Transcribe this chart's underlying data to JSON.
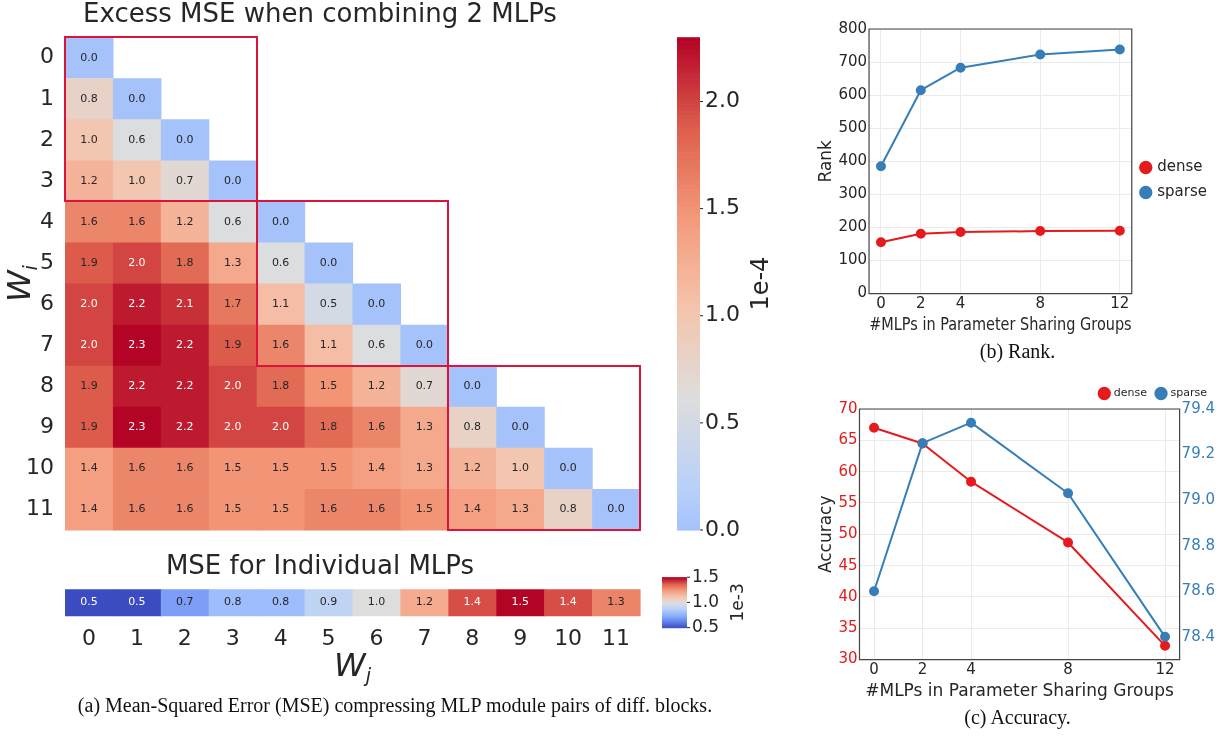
{
  "chart_data": [
    {
      "type": "heatmap",
      "title": "Excess MSE when combining 2 MLPs",
      "ylabel": "W$_{i}$",
      "clabel": "1e-4",
      "tick_labels": "y",
      "categories": [
        "0",
        "1",
        "2",
        "3",
        "4",
        "5",
        "6",
        "7",
        "8",
        "9",
        "10",
        "11"
      ],
      "y_categories": [
        "0",
        "1",
        "2",
        "3",
        "4",
        "5",
        "6",
        "7",
        "8",
        "9",
        "10",
        "11"
      ],
      "cells": [
        [
          0.0,
          null,
          null,
          null,
          null,
          null,
          null,
          null,
          null,
          null,
          null,
          null
        ],
        [
          0.8,
          0.0,
          null,
          null,
          null,
          null,
          null,
          null,
          null,
          null,
          null,
          null
        ],
        [
          1.0,
          0.6,
          0.0,
          null,
          null,
          null,
          null,
          null,
          null,
          null,
          null,
          null
        ],
        [
          1.2,
          1.0,
          0.7,
          0.0,
          null,
          null,
          null,
          null,
          null,
          null,
          null,
          null
        ],
        [
          1.6,
          1.6,
          1.2,
          0.6,
          0.0,
          null,
          null,
          null,
          null,
          null,
          null,
          null
        ],
        [
          1.9,
          2.0,
          1.8,
          1.3,
          0.6,
          0.0,
          null,
          null,
          null,
          null,
          null,
          null
        ],
        [
          2.0,
          2.2,
          2.1,
          1.7,
          1.1,
          0.5,
          0.0,
          null,
          null,
          null,
          null,
          null
        ],
        [
          2.0,
          2.3,
          2.2,
          1.9,
          1.6,
          1.1,
          0.6,
          0.0,
          null,
          null,
          null,
          null
        ],
        [
          1.9,
          2.2,
          2.2,
          2.0,
          1.8,
          1.5,
          1.2,
          0.7,
          0.0,
          null,
          null,
          null
        ],
        [
          1.9,
          2.3,
          2.2,
          2.0,
          2.0,
          1.8,
          1.6,
          1.3,
          0.8,
          0.0,
          null,
          null
        ],
        [
          1.4,
          1.6,
          1.6,
          1.5,
          1.5,
          1.5,
          1.4,
          1.3,
          1.2,
          1.0,
          0.0,
          null
        ],
        [
          1.4,
          1.6,
          1.6,
          1.5,
          1.5,
          1.6,
          1.6,
          1.5,
          1.4,
          1.3,
          0.8,
          0.0
        ]
      ],
      "cell_labels": [
        [
          "0.0",
          null,
          null,
          null,
          null,
          null,
          null,
          null,
          null,
          null,
          null,
          null
        ],
        [
          "0.8",
          "0.0",
          null,
          null,
          null,
          null,
          null,
          null,
          null,
          null,
          null,
          null
        ],
        [
          "1.0",
          "0.6",
          "0.0",
          null,
          null,
          null,
          null,
          null,
          null,
          null,
          null,
          null
        ],
        [
          "1.2",
          "1.0",
          "0.7",
          "0.0",
          null,
          null,
          null,
          null,
          null,
          null,
          null,
          null
        ],
        [
          "1.6",
          "1.6",
          "1.2",
          "0.6",
          "0.0",
          null,
          null,
          null,
          null,
          null,
          null,
          null
        ],
        [
          "1.9",
          "2.0",
          "1.8",
          "1.3",
          "0.6",
          "0.0",
          null,
          null,
          null,
          null,
          null,
          null
        ],
        [
          "2.0",
          "2.2",
          "2.1",
          "1.7",
          "1.1",
          "0.5",
          "0.0",
          null,
          null,
          null,
          null,
          null
        ],
        [
          "2.0",
          "2.3",
          "2.2",
          "1.9",
          "1.6",
          "1.1",
          "0.6",
          "0.0",
          null,
          null,
          null,
          null
        ],
        [
          "1.9",
          "2.2",
          "2.2",
          "2.0",
          "1.8",
          "1.5",
          "1.2",
          "0.7",
          "0.0",
          null,
          null,
          null
        ],
        [
          "1.9",
          "2.3",
          "2.2",
          "2.0",
          "2.0",
          "1.8",
          "1.6",
          "1.3",
          "0.8",
          "0.0",
          null,
          null
        ],
        [
          "1.4",
          "1.6",
          "1.6",
          "1.5",
          "1.5",
          "1.5",
          "1.4",
          "1.3",
          "1.2",
          "1.0",
          "0.0",
          null
        ],
        [
          "1.4",
          "1.6",
          "1.6",
          "1.5",
          "1.5",
          "1.6",
          "1.6",
          "1.5",
          "1.4",
          "1.3",
          "0.8",
          "0.0"
        ]
      ],
      "clim": [
        0,
        2.3
      ],
      "cticks": [
        {
          "value": 0,
          "label": "0.0"
        },
        {
          "value": 0.5,
          "label": "0.5"
        },
        {
          "value": 1,
          "label": "1.0"
        },
        {
          "value": 1.5,
          "label": "1.5"
        },
        {
          "value": 2,
          "label": "2.0"
        }
      ]
    },
    {
      "type": "heatmap",
      "title": "MSE for Individual MLPs",
      "xlabel": "W$_{j}$",
      "clabel": "1e-3",
      "tick_labels": "x",
      "categories": [
        "0",
        "1",
        "2",
        "3",
        "4",
        "5",
        "6",
        "7",
        "8",
        "9",
        "10",
        "11"
      ],
      "y_categories": [
        null
      ],
      "cells": [
        [
          0.5,
          0.5,
          0.7,
          0.8,
          0.8,
          0.9,
          1.0,
          1.2,
          1.4,
          1.5,
          1.4,
          1.3
        ]
      ],
      "cell_labels": [
        [
          "0.5",
          "0.5",
          "0.7",
          "0.8",
          "0.8",
          "0.9",
          "1.0",
          "1.2",
          "1.4",
          "1.5",
          "1.4",
          "1.3"
        ]
      ],
      "clim": [
        0.5,
        1.5
      ],
      "cticks": [
        {
          "value": 0.5,
          "label": "0.5"
        },
        {
          "value": 1,
          "label": "1.0"
        },
        {
          "value": 1.5,
          "label": "1.5"
        }
      ],
      "annotations": [
        "(a) Mean-Squared Error (MSE) compressing MLP module pairs of diff. blocks."
      ]
    },
    {
      "type": "line",
      "xlabel": "#MLPs in Parameter Sharing Groups",
      "ylabel": "Rank",
      "x": [
        0,
        2,
        4,
        8,
        12
      ],
      "series": [
        {
          "name": "dense",
          "color": "#e41a1c",
          "values": [
            155,
            181,
            186,
            189,
            190
          ]
        },
        {
          "name": "sparse",
          "color": "#377eb8",
          "values": [
            385,
            615,
            683,
            723,
            738
          ]
        }
      ],
      "xlim": [
        -0.6,
        12.6
      ],
      "xticks": [
        0,
        2,
        4,
        8,
        12
      ],
      "ylim": [
        0,
        800
      ],
      "yticks": [
        0,
        100,
        200,
        300,
        400,
        500,
        600,
        700,
        800
      ],
      "grid": true,
      "legend": "right",
      "marker": "circle",
      "annotations": [
        "(b) Rank."
      ]
    },
    {
      "type": "line",
      "xlabel": "#MLPs in Parameter Sharing Groups",
      "ylabel": "Accuracy",
      "x": [
        0,
        2,
        4,
        8,
        12
      ],
      "series": [
        {
          "name": "dense",
          "color": "#e41a1c",
          "values": [
            67.0,
            64.5,
            58.4,
            48.7,
            32.2
          ]
        },
        {
          "name": "sparse",
          "color": "#377eb8",
          "axis": "y2",
          "values": [
            78.6,
            79.25,
            79.34,
            79.03,
            78.4
          ]
        }
      ],
      "xlim": [
        -0.6,
        12.6
      ],
      "xticks": [
        0,
        2,
        4,
        8,
        12
      ],
      "ylim": [
        30,
        70
      ],
      "yticks": [
        30,
        35,
        40,
        45,
        50,
        55,
        60,
        65,
        70
      ],
      "y2lim": [
        78.3,
        79.4
      ],
      "y2ticks": [
        78.4,
        78.6,
        78.8,
        {
          "value": 79,
          "label": "79.0"
        },
        79.2,
        79.4
      ],
      "grid": true,
      "legend": "top right",
      "marker": "circle",
      "annotations": [
        "(c) Accuracy."
      ]
    }
  ]
}
